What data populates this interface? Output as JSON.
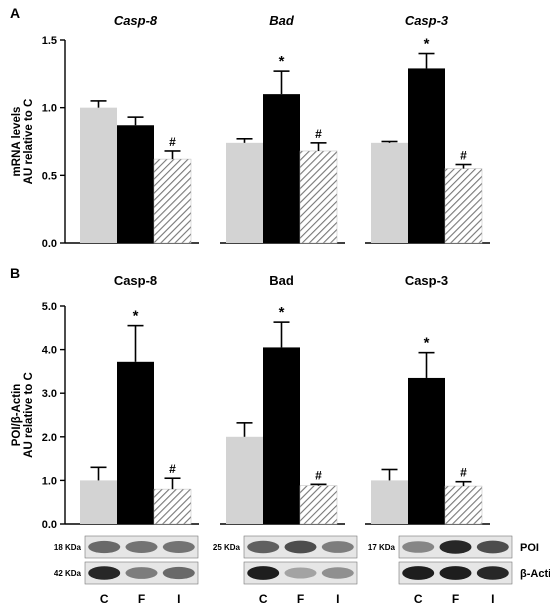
{
  "panels": [
    {
      "letter": "A",
      "ylabel_lines": [
        "mRNA levels",
        "AU relative to C"
      ],
      "ylim": [
        0,
        1.5
      ],
      "yticks": [
        0.0,
        0.5,
        1.0,
        1.5
      ],
      "ytick_labels": [
        "0.0",
        "0.5",
        "1.0",
        "1.5"
      ],
      "groups": [
        {
          "title": "Casp-8",
          "italic": true,
          "values": [
            1.0,
            0.87,
            0.62
          ],
          "errors": [
            0.05,
            0.06,
            0.06
          ],
          "marks": [
            "",
            "",
            "#"
          ]
        },
        {
          "title": "Bad",
          "italic": true,
          "values": [
            0.74,
            1.1,
            0.68
          ],
          "errors": [
            0.03,
            0.17,
            0.06
          ],
          "marks": [
            "",
            "*",
            "#"
          ]
        },
        {
          "title": "Casp-3",
          "italic": true,
          "values": [
            0.74,
            1.29,
            0.55
          ],
          "errors": [
            0.01,
            0.11,
            0.03
          ],
          "marks": [
            "",
            "*",
            "#"
          ]
        }
      ]
    },
    {
      "letter": "B",
      "ylabel_lines": [
        "POI/β-Actin",
        "AU relative to C"
      ],
      "ylim": [
        0,
        5.0
      ],
      "yticks": [
        0.0,
        1.0,
        2.0,
        3.0,
        4.0,
        5.0
      ],
      "ytick_labels": [
        "0.0",
        "1.0",
        "2.0",
        "3.0",
        "4.0",
        "5.0"
      ],
      "groups": [
        {
          "title": "Casp-8",
          "italic": false,
          "values": [
            1.0,
            3.72,
            0.8
          ],
          "errors": [
            0.3,
            0.83,
            0.25
          ],
          "marks": [
            "",
            "*",
            "#"
          ],
          "blot_kda": [
            "18 KDa",
            "42 KDa"
          ]
        },
        {
          "title": "Bad",
          "italic": false,
          "values": [
            2.0,
            4.05,
            0.88
          ],
          "errors": [
            0.32,
            0.58,
            0.03
          ],
          "marks": [
            "",
            "*",
            "#"
          ],
          "blot_kda": [
            "25 KDa",
            ""
          ]
        },
        {
          "title": "Casp-3",
          "italic": false,
          "values": [
            1.0,
            3.35,
            0.87
          ],
          "errors": [
            0.25,
            0.58,
            0.1
          ],
          "marks": [
            "",
            "*",
            "#"
          ],
          "blot_kda": [
            "17 KDa",
            ""
          ]
        }
      ]
    }
  ],
  "blot_row_labels": [
    "POI",
    "β-Actin"
  ],
  "lane_labels": [
    "C",
    "F",
    "I"
  ],
  "colors": {
    "C": "#d3d3d3",
    "F": "#000000",
    "I_hatch": "#888888",
    "blot_band": "#1a1a1a"
  },
  "chart_data": [
    {
      "type": "bar",
      "title": "",
      "ylabel": "mRNA levels AU relative to C",
      "ylim": [
        0,
        1.5
      ],
      "categories": [
        "Casp-8",
        "Bad",
        "Casp-3"
      ],
      "series": [
        {
          "name": "",
          "values": [
            1.0,
            0.74,
            0.74
          ]
        },
        {
          "name": "",
          "values": [
            0.87,
            1.1,
            1.29
          ]
        },
        {
          "name": "",
          "values": [
            0.62,
            0.68,
            0.55
          ]
        }
      ]
    },
    {
      "type": "bar",
      "title": "",
      "ylabel": "POI/β-Actin AU relative to C",
      "ylim": [
        0,
        5.0
      ],
      "categories": [
        "Casp-8",
        "Bad",
        "Casp-3"
      ],
      "series": [
        {
          "name": "C",
          "values": [
            1.0,
            2.0,
            1.0
          ]
        },
        {
          "name": "F",
          "values": [
            3.72,
            4.05,
            3.35
          ]
        },
        {
          "name": "I",
          "values": [
            0.8,
            0.88,
            0.87
          ]
        }
      ]
    }
  ]
}
